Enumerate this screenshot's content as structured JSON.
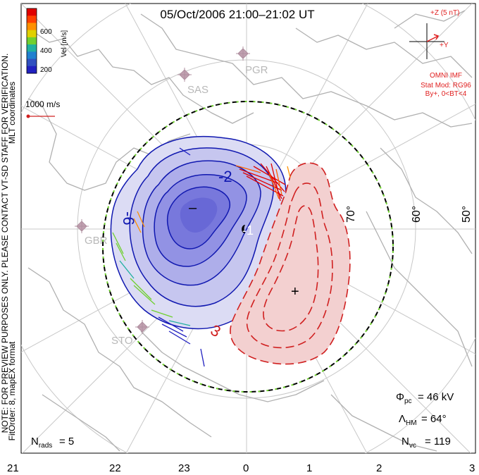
{
  "title": "05/Oct/2006 21:00–21:02 UT",
  "left_notes": {
    "coords": "MLT coordinates",
    "preview": "NOTE: FOR PREVIEW PURPOSES ONLY. PLEASE CONTACT VT-SD STAFF FOR VERIFICATION.",
    "fit": "FitOrder: 8, mapEX format"
  },
  "colorbar": {
    "label": "Vel [m/s]",
    "ticks": [
      "600",
      "400",
      "200"
    ],
    "colors": [
      "#e00000",
      "#ff4000",
      "#ff9000",
      "#e0d000",
      "#70d030",
      "#20b0a0",
      "#2080d0",
      "#3050c0",
      "#2020c0"
    ]
  },
  "scale_vector": "1000 m/s",
  "imf": {
    "axis_label": "+Z (5 nT)",
    "y_label": "+Y",
    "source": "OMNI IMF",
    "stat_model": "Stat Mod: RG96",
    "condition": "By+, 0<BT<4"
  },
  "stations": [
    "PGR",
    "SAS",
    "GBR",
    "STO"
  ],
  "lat_labels": [
    "70°",
    "60°",
    "50°"
  ],
  "contour_labels": [
    "-2",
    "-6",
    "3",
    "-1"
  ],
  "extrema": {
    "min": "–",
    "max": "+"
  },
  "bottom_mlt": [
    "21",
    "22",
    "23",
    "0",
    "1",
    "2",
    "3"
  ],
  "stats": {
    "phi_pc": "= 46 kV",
    "lambda_hm": "= 64°",
    "n_vc": "= 119",
    "n_rads": "= 5"
  },
  "colors": {
    "negative_fill": "#5a5ae0",
    "negative_line": "#1018b0",
    "positive_fill": "#f2cccc",
    "positive_line": "#d02020",
    "annotation": "#e02020"
  }
}
